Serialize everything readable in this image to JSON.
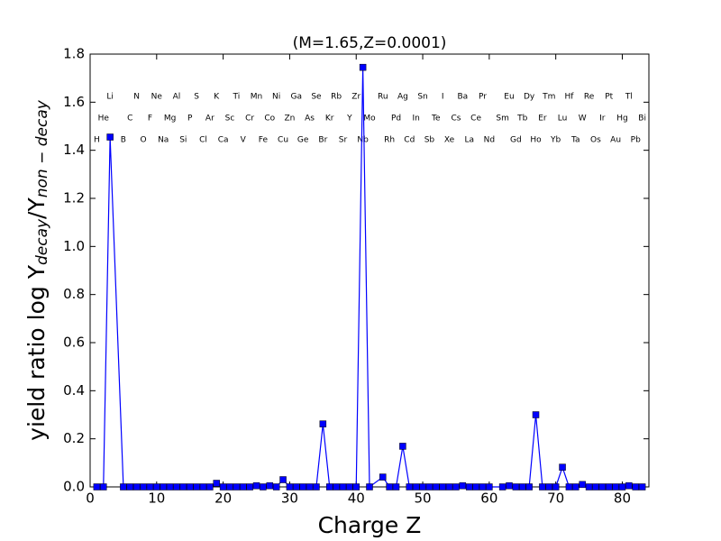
{
  "chart_data": {
    "type": "line",
    "title": "(M=1.65,Z=0.0001)",
    "xlabel": "Charge Z",
    "ylabel": {
      "text": "yield ratio log Y",
      "sub1": "decay",
      "mid": "/Y",
      "sub2": "non − decay"
    },
    "x": [
      1,
      2,
      3,
      5,
      6,
      7,
      8,
      9,
      10,
      11,
      12,
      13,
      14,
      15,
      16,
      17,
      18,
      19,
      20,
      21,
      22,
      23,
      24,
      25,
      26,
      27,
      28,
      29,
      30,
      31,
      32,
      33,
      34,
      35,
      36,
      37,
      38,
      39,
      40,
      41,
      42,
      44,
      45,
      46,
      47,
      48,
      49,
      50,
      51,
      52,
      53,
      54,
      55,
      56,
      57,
      58,
      59,
      60,
      62,
      63,
      64,
      65,
      66,
      67,
      68,
      69,
      70,
      71,
      72,
      73,
      74,
      75,
      76,
      77,
      78,
      79,
      80,
      81,
      82,
      83
    ],
    "elements": [
      "H",
      "He",
      "Li",
      "B",
      "C",
      "N",
      "O",
      "F",
      "Ne",
      "Na",
      "Mg",
      "Al",
      "Si",
      "P",
      "S",
      "Cl",
      "Ar",
      "K",
      "Ca",
      "Sc",
      "Ti",
      "V",
      "Cr",
      "Mn",
      "Fe",
      "Co",
      "Ni",
      "Cu",
      "Zn",
      "Ga",
      "Ge",
      "As",
      "Se",
      "Br",
      "Kr",
      "Rb",
      "Sr",
      "Y",
      "Zr",
      "Nb",
      "Mo",
      "Ru",
      "Rh",
      "Pd",
      "Ag",
      "Cd",
      "In",
      "Sn",
      "Sb",
      "Te",
      "I",
      "Xe",
      "Cs",
      "Ba",
      "La",
      "Ce",
      "Pr",
      "Nd",
      "Sm",
      "Eu",
      "Gd",
      "Tb",
      "Dy",
      "Ho",
      "Er",
      "Tm",
      "Yb",
      "Lu",
      "Hf",
      "Ta",
      "W",
      "Re",
      "Os",
      "Ir",
      "Pt",
      "Au",
      "Hg",
      "Tl",
      "Pb",
      "Bi"
    ],
    "series": [
      {
        "color": "#0000ff",
        "values": [
          0,
          0,
          1.455,
          0,
          0,
          0,
          0,
          0,
          0,
          0,
          0,
          0,
          0,
          0,
          0,
          0,
          0,
          0.015,
          0,
          0,
          0,
          0,
          0,
          0.005,
          0,
          0.005,
          0,
          0.03,
          0,
          0,
          0,
          0,
          0,
          0.262,
          0,
          0,
          0,
          0,
          0,
          1.745,
          0,
          0.041,
          0,
          0,
          0.169,
          0,
          0,
          0,
          0,
          0,
          0,
          0,
          0,
          0.005,
          0,
          0,
          0,
          0,
          0,
          0.005,
          0,
          0,
          0,
          0.3,
          0,
          0,
          0,
          0.082,
          0,
          0,
          0.01,
          0,
          0,
          0,
          0,
          0,
          0,
          0.005,
          0,
          0
        ]
      }
    ],
    "xlim": [
      0,
      84
    ],
    "xticks": [
      0,
      10,
      20,
      30,
      40,
      50,
      60,
      70,
      80
    ],
    "ylim": [
      0,
      1.8
    ],
    "yticks": [
      {
        "value": 0,
        "label": "0.0"
      },
      0.2,
      0.4,
      0.6,
      0.8,
      {
        "value": 1,
        "label": "1.0"
      },
      1.2,
      1.4,
      1.6,
      1.8
    ]
  }
}
